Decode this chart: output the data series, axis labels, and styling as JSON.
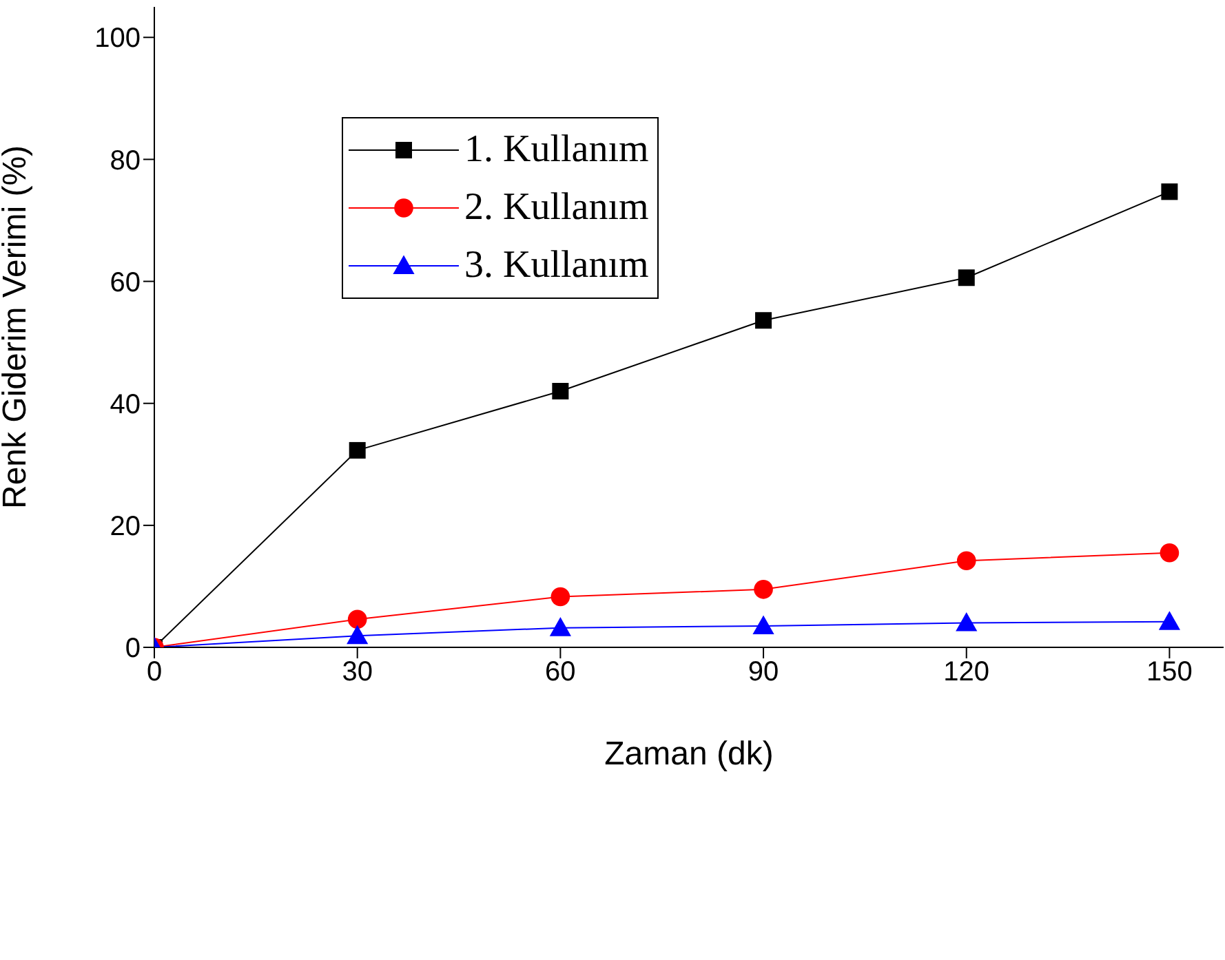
{
  "chart_data": {
    "type": "line",
    "xlabel": "Zaman (dk)",
    "ylabel": "Renk Giderim Verimi (%)",
    "x": [
      0,
      30,
      60,
      90,
      120,
      150
    ],
    "series": [
      {
        "name": "1. Kullanım",
        "color": "#000000",
        "marker": "square",
        "values": [
          0,
          32.3,
          42.0,
          53.6,
          60.6,
          74.7
        ]
      },
      {
        "name": "2. Kullanım",
        "color": "#ff0000",
        "marker": "circle",
        "values": [
          0,
          4.6,
          8.3,
          9.5,
          14.2,
          15.5
        ]
      },
      {
        "name": "3. Kullanım",
        "color": "#0000ff",
        "marker": "triangle",
        "values": [
          0,
          1.9,
          3.2,
          3.5,
          4.0,
          4.2
        ]
      }
    ],
    "xlim": [
      0,
      158
    ],
    "xticks": [
      0,
      30,
      60,
      90,
      120,
      150
    ],
    "ylim": [
      0,
      105
    ],
    "yticks": [
      0,
      20,
      40,
      60,
      80,
      100
    ],
    "grid": false,
    "legend": "top left",
    "line_style": "solid"
  }
}
